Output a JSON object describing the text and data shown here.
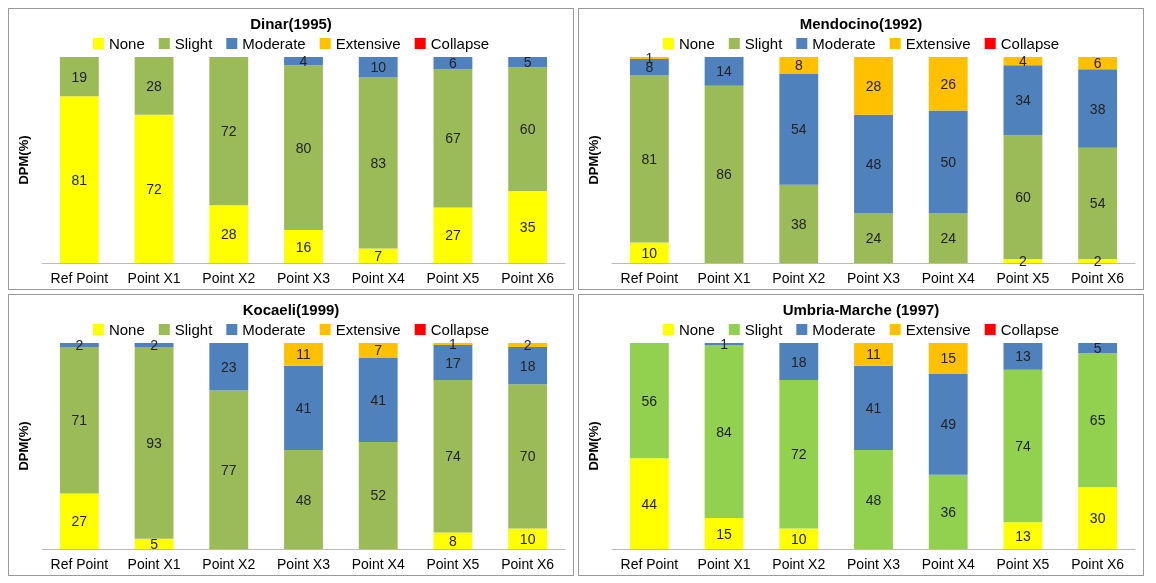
{
  "chart_data": [
    {
      "type": "bar",
      "title": "Dinar(1995)",
      "ylabel": "DPM(%)",
      "stacked": true,
      "data_labels": true,
      "legend": "top",
      "grid": false,
      "tick_labels": "x",
      "categories": [
        "Ref Point",
        "Point X1",
        "Point X2",
        "Point X3",
        "Point X4",
        "Point X5",
        "Point X6"
      ],
      "series": [
        {
          "name": "None",
          "color": "#ffff00",
          "values": [
            81,
            72,
            28,
            16,
            7,
            27,
            35
          ]
        },
        {
          "name": "Slight",
          "color": "#9bbb59",
          "values": [
            19,
            28,
            72,
            80,
            83,
            67,
            60
          ]
        },
        {
          "name": "Moderate",
          "color": "#4f81bd",
          "values": [
            null,
            null,
            null,
            4,
            10,
            6,
            5
          ]
        },
        {
          "name": "Extensive",
          "color": "#ffc000",
          "values": [
            null,
            null,
            null,
            null,
            null,
            null,
            null
          ]
        },
        {
          "name": "Collapse",
          "color": "#ff0000",
          "values": [
            null,
            null,
            null,
            null,
            null,
            null,
            null
          ]
        }
      ]
    },
    {
      "type": "bar",
      "title": "Mendocino(1992)",
      "ylabel": "DPM(%)",
      "stacked": true,
      "data_labels": true,
      "legend": "top",
      "grid": false,
      "tick_labels": "x",
      "categories": [
        "Ref Point",
        "Point X1",
        "Point X2",
        "Point X3",
        "Point X4",
        "Point X5",
        "Point X6"
      ],
      "series": [
        {
          "name": "None",
          "color": "#ffff00",
          "values": [
            10,
            null,
            null,
            null,
            null,
            2,
            2
          ]
        },
        {
          "name": "Slight",
          "color": "#9bbb59",
          "values": [
            81,
            86,
            38,
            24,
            24,
            60,
            54
          ]
        },
        {
          "name": "Moderate",
          "color": "#4f81bd",
          "values": [
            8,
            14,
            54,
            48,
            50,
            34,
            38
          ]
        },
        {
          "name": "Extensive",
          "color": "#ffc000",
          "values": [
            1,
            null,
            8,
            28,
            26,
            4,
            6
          ]
        },
        {
          "name": "Collapse",
          "color": "#ff0000",
          "values": [
            null,
            null,
            null,
            null,
            null,
            null,
            null
          ]
        }
      ]
    },
    {
      "type": "bar",
      "title": "Kocaeli(1999)",
      "ylabel": "DPM(%)",
      "stacked": true,
      "data_labels": true,
      "legend": "top",
      "grid": false,
      "tick_labels": "x",
      "categories": [
        "Ref Point",
        "Point X1",
        "Point X2",
        "Point X3",
        "Point X4",
        "Point X5",
        "Point X6"
      ],
      "series": [
        {
          "name": "None",
          "color": "#ffff00",
          "values": [
            27,
            5,
            null,
            null,
            null,
            8,
            10
          ]
        },
        {
          "name": "Slight",
          "color": "#9bbb59",
          "values": [
            71,
            93,
            77,
            48,
            52,
            74,
            70
          ]
        },
        {
          "name": "Moderate",
          "color": "#4f81bd",
          "values": [
            2,
            2,
            23,
            41,
            41,
            17,
            18
          ]
        },
        {
          "name": "Extensive",
          "color": "#ffc000",
          "values": [
            null,
            null,
            null,
            11,
            7,
            1,
            2
          ]
        },
        {
          "name": "Collapse",
          "color": "#ff0000",
          "values": [
            null,
            null,
            null,
            null,
            null,
            null,
            null
          ]
        }
      ]
    },
    {
      "type": "bar",
      "title": "Umbria-Marche (1997)",
      "ylabel": "DPM(%)",
      "stacked": true,
      "data_labels": true,
      "legend": "top",
      "grid": false,
      "tick_labels": "x",
      "categories": [
        "Ref Point",
        "Point X1",
        "Point X2",
        "Point X3",
        "Point X4",
        "Point X5",
        "Point X6"
      ],
      "series": [
        {
          "name": "None",
          "color": "#ffff00",
          "values": [
            44,
            15,
            10,
            null,
            null,
            13,
            30
          ]
        },
        {
          "name": "Slight",
          "color": "#92d050",
          "values": [
            56,
            84,
            72,
            48,
            36,
            74,
            65
          ]
        },
        {
          "name": "Moderate",
          "color": "#4f81bd",
          "values": [
            null,
            1,
            18,
            41,
            49,
            13,
            5
          ]
        },
        {
          "name": "Extensive",
          "color": "#ffc000",
          "values": [
            null,
            null,
            null,
            11,
            15,
            null,
            null
          ]
        },
        {
          "name": "Collapse",
          "color": "#ff0000",
          "values": [
            null,
            null,
            null,
            null,
            null,
            null,
            null
          ]
        }
      ]
    }
  ]
}
